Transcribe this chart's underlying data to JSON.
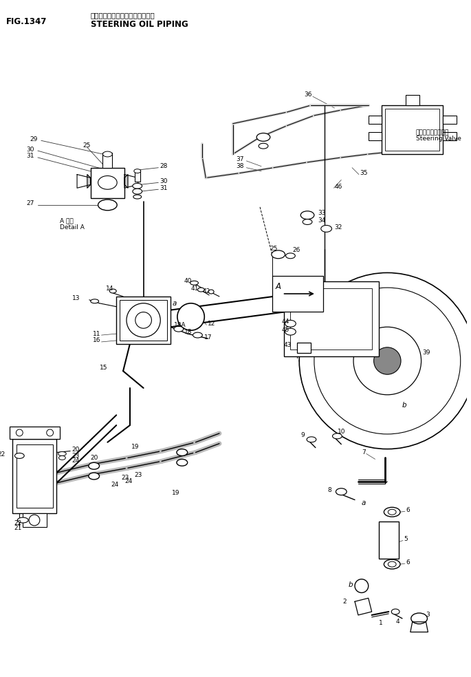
{
  "title_japanese": "ステアリング　オイルパイピング",
  "title_english": "STEERING OIL PIPING",
  "fig_number": "FIG.1347",
  "bg_color": "#ffffff",
  "lc": "#000000",
  "tc": "#000000",
  "steering_valve_jp": "ステアリングバルブ",
  "steering_valve_en": "Steering Valve",
  "detail_a_jp": "A 詳細",
  "detail_a_en": "Detail A",
  "fs": 7.5,
  "fs_title": 8.5,
  "fs_small": 6.5
}
